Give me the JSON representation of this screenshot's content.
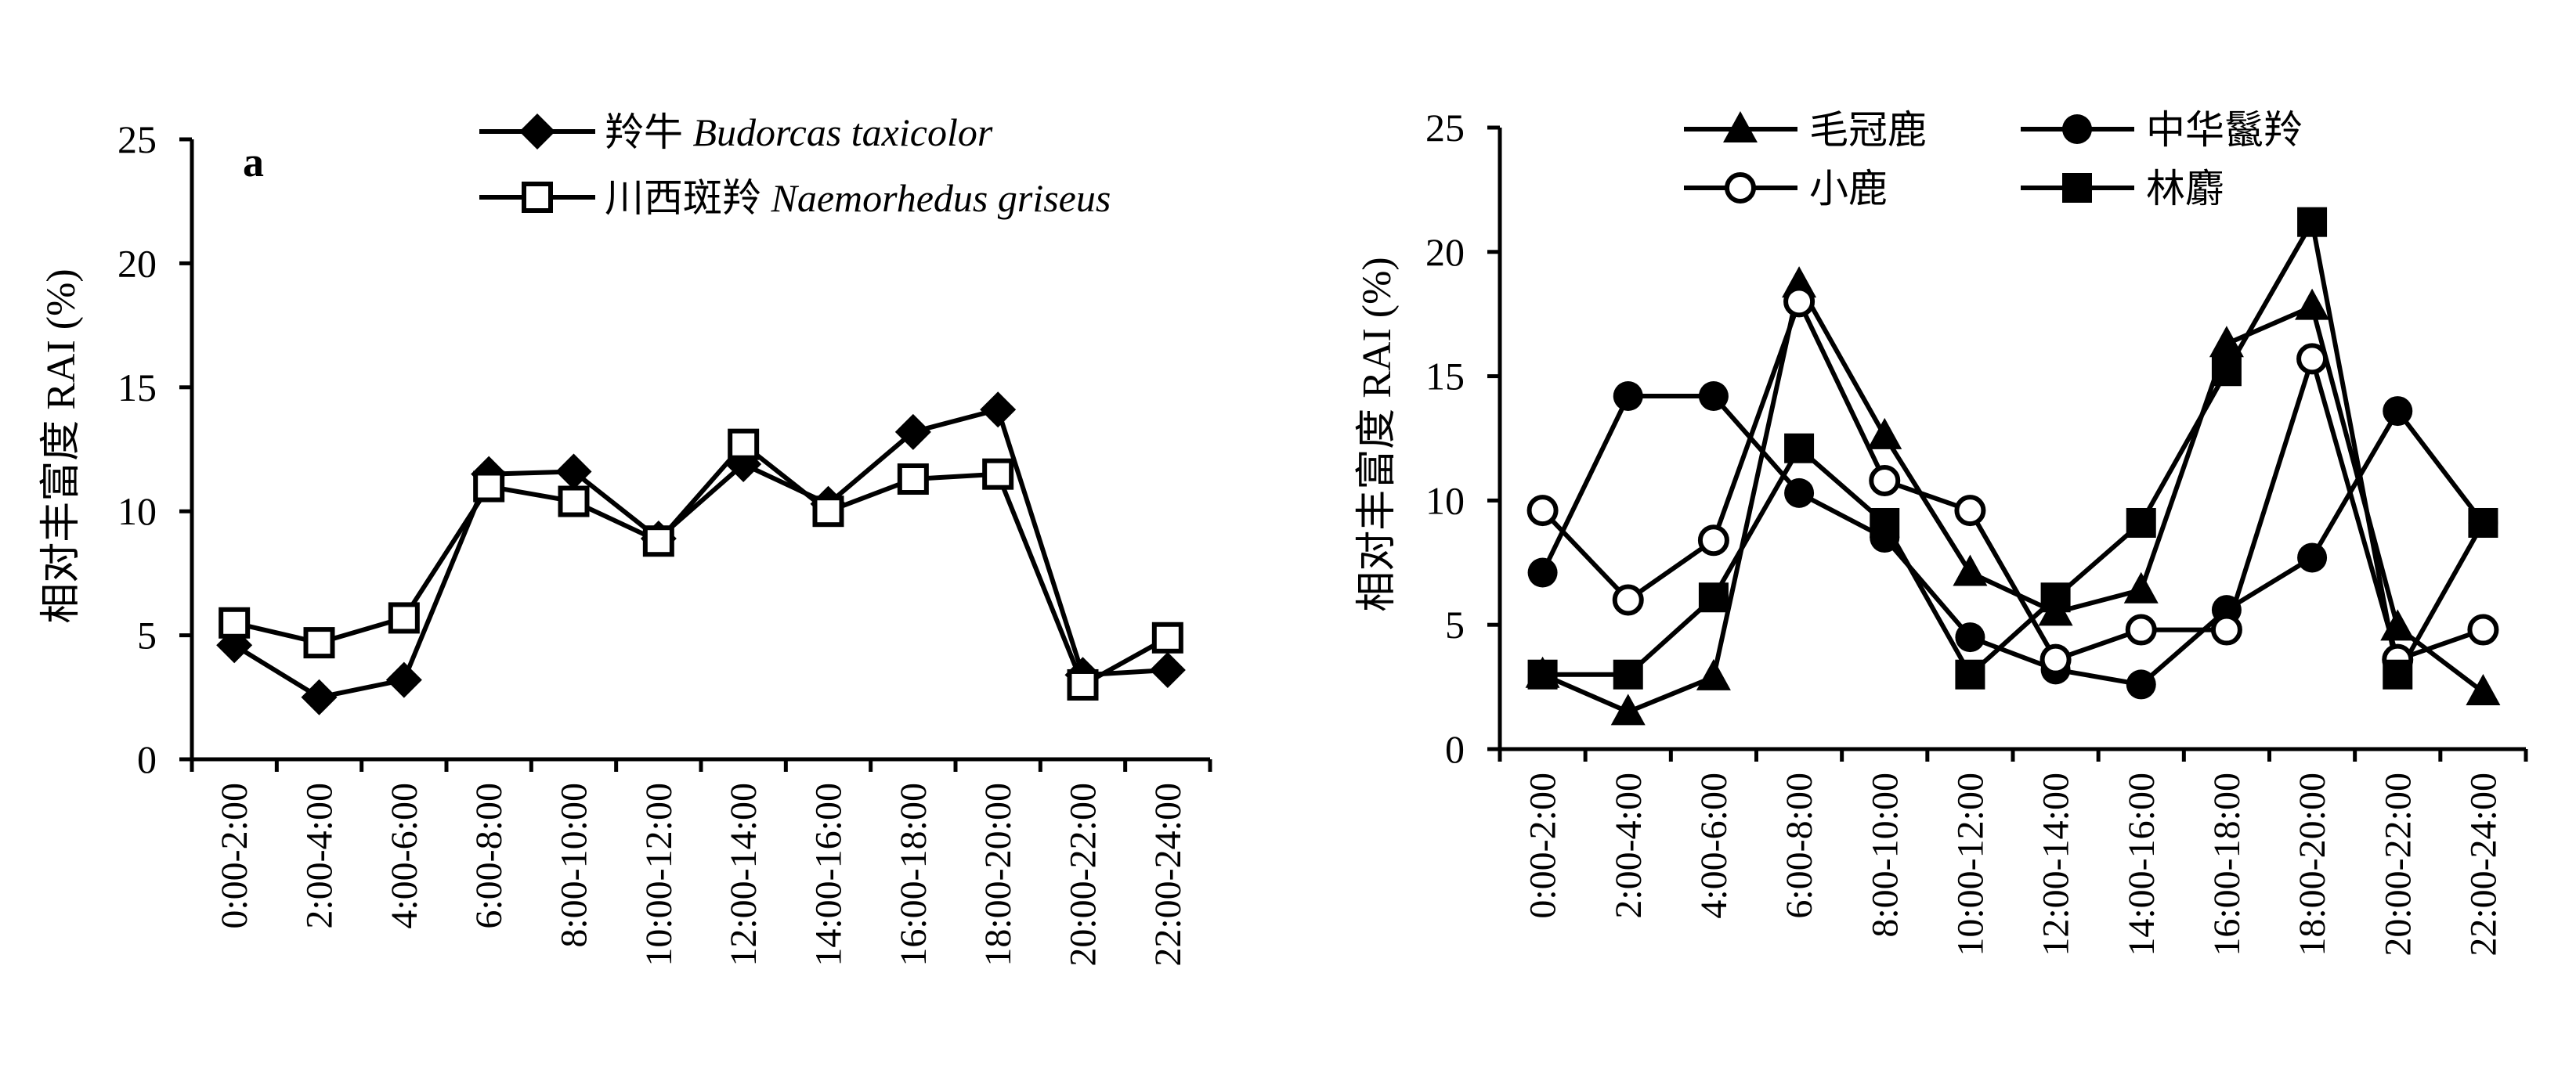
{
  "chart_data": [
    {
      "type": "line",
      "panel_label": "a",
      "title": "",
      "xlabel": "",
      "ylabel": "相对丰富度 RAI (%)",
      "ylim": [
        0,
        25
      ],
      "yticks": [
        0,
        5,
        10,
        15,
        20,
        25
      ],
      "grid": false,
      "legend_position": "top",
      "categories": [
        "0:00-2:00",
        "2:00-4:00",
        "4:00-6:00",
        "6:00-8:00",
        "8:00-10:00",
        "10:00-12:00",
        "12:00-14:00",
        "14:00-16:00",
        "16:00-18:00",
        "18:00-20:00",
        "20:00-22:00",
        "22:00-24:00"
      ],
      "series": [
        {
          "name_cn": "羚牛",
          "name_latin": "Budorcas taxicolor",
          "marker": "diamond-filled",
          "values": [
            4.6,
            2.5,
            3.2,
            11.5,
            11.6,
            8.9,
            11.9,
            10.3,
            13.2,
            14.1,
            3.4,
            3.6
          ]
        },
        {
          "name_cn": "川西斑羚",
          "name_latin": "Naemorhedus griseus",
          "marker": "square-open",
          "values": [
            5.5,
            4.7,
            5.7,
            11.0,
            10.4,
            8.8,
            12.7,
            10.0,
            11.3,
            11.5,
            3.0,
            4.9
          ]
        }
      ]
    },
    {
      "type": "line",
      "title": "",
      "xlabel": "",
      "ylabel": "相对丰富度 RAI (%)",
      "ylim": [
        0,
        25
      ],
      "yticks": [
        0,
        5,
        10,
        15,
        20,
        25
      ],
      "grid": false,
      "legend_position": "top",
      "categories": [
        "0:00-2:00",
        "2:00-4:00",
        "4:00-6:00",
        "6:00-8:00",
        "8:00-10:00",
        "10:00-12:00",
        "12:00-14:00",
        "14:00-16:00",
        "16:00-18:00",
        "18:00-20:00",
        "20:00-22:00",
        "22:00-24:00"
      ],
      "series": [
        {
          "name": "毛冠鹿",
          "marker": "triangle-filled",
          "values": [
            3.0,
            1.5,
            2.9,
            18.7,
            12.6,
            7.1,
            5.5,
            6.4,
            16.3,
            17.8,
            4.9,
            2.3
          ]
        },
        {
          "name": "中华鬣羚",
          "marker": "circle-filled",
          "values": [
            7.1,
            14.2,
            14.2,
            10.3,
            8.5,
            4.5,
            3.2,
            2.6,
            5.6,
            7.7,
            13.6,
            9.1
          ]
        },
        {
          "name": "小鹿",
          "marker": "circle-open",
          "values": [
            9.6,
            6.0,
            8.4,
            18.0,
            10.8,
            9.6,
            3.6,
            4.8,
            4.8,
            15.7,
            3.6,
            4.8
          ]
        },
        {
          "name": "林麝",
          "marker": "square-filled",
          "values": [
            3.0,
            3.0,
            6.1,
            12.1,
            9.1,
            3.0,
            6.1,
            9.1,
            15.2,
            21.2,
            3.0,
            9.1
          ]
        }
      ]
    }
  ]
}
